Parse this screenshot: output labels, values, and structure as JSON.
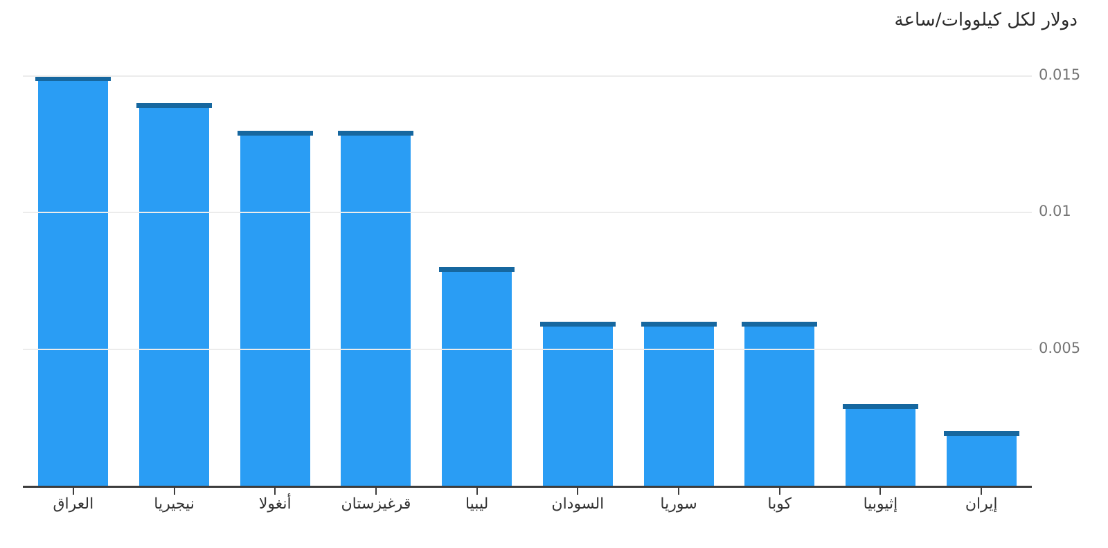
{
  "title": "دولار لكل كيلووات/ساعة",
  "colors": {
    "background": "#ffffff",
    "bar_fill": "#2a9df4",
    "bar_cap": "#16679f",
    "gridline": "#ececec",
    "axis": "#3c3c3c",
    "y_tick_label": "#757575",
    "x_tick_label": "#333333",
    "title": "#2b2b2b"
  },
  "chart_data": {
    "type": "bar",
    "title": "دولار لكل كيلووات/ساعة",
    "categories": [
      "العراق",
      "نيجيريا",
      "أنغولا",
      "قرغيزستان",
      "ليبيا",
      "السودان",
      "سوريا",
      "كوبا",
      "إثيوبيا",
      "إيران"
    ],
    "values": [
      0.015,
      0.014,
      0.013,
      0.013,
      0.008,
      0.006,
      0.006,
      0.006,
      0.003,
      0.002
    ],
    "xlabel": "",
    "ylabel": "دولار لكل كيلووات/ساعة",
    "yticks": [
      0.005,
      0.01,
      0.015
    ],
    "ytick_labels": [
      "0.005",
      "0.01",
      "0.015"
    ],
    "ylim": [
      0,
      0.0155
    ],
    "grid": true,
    "legend": false,
    "bar_direction": "vertical",
    "y_axis_side": "right"
  }
}
